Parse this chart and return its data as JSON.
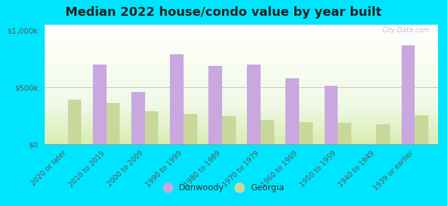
{
  "title": "Median 2022 house/condo value by year built",
  "categories": [
    "2020 or later",
    "2010 to 2019",
    "2000 to 2009",
    "1990 to 1999",
    "1980 to 1989",
    "1970 to 1979",
    "1960 to 1969",
    "1950 to 1959",
    "1940 to 1949",
    "1939 or earlier"
  ],
  "dunwoody": [
    0,
    700000,
    460000,
    790000,
    690000,
    700000,
    580000,
    510000,
    0,
    870000
  ],
  "georgia": [
    390000,
    360000,
    290000,
    265000,
    245000,
    210000,
    195000,
    185000,
    175000,
    255000
  ],
  "dunwoody_color": "#c9a8e0",
  "georgia_color": "#c8d89a",
  "background_outer": "#00e5ff",
  "yticks": [
    0,
    500000,
    1000000
  ],
  "ytick_labels": [
    "$0",
    "$500k",
    "$1,000k"
  ],
  "ylim": [
    0,
    1050000
  ],
  "bar_width": 0.35,
  "title_fontsize": 13,
  "watermark": "City-Data.com",
  "legend_dunwoody": "Dunwoody",
  "legend_georgia": "Georgia"
}
